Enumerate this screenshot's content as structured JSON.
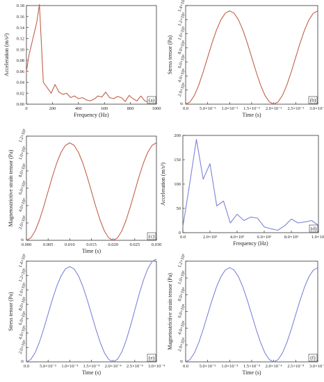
{
  "figure": {
    "colors": {
      "orange": "#c0604a",
      "blue": "#7b84d8",
      "axis": "#333333"
    }
  },
  "chart_data": [
    {
      "panel": "(a)",
      "type": "line",
      "color": "orange",
      "xlabel": "Frequency (Hz)",
      "ylabel": "Acceleration (m/s²)",
      "xlim": [
        0,
        1000
      ],
      "ylim": [
        0,
        0.18
      ],
      "xticks": [
        {
          "v": 0,
          "t": "0"
        },
        {
          "v": 200,
          "t": "200"
        },
        {
          "v": 400,
          "t": "400"
        },
        {
          "v": 600,
          "t": "600"
        },
        {
          "v": 800,
          "t": "800"
        },
        {
          "v": 1000,
          "t": "1000"
        }
      ],
      "yticks": [
        {
          "v": 0,
          "t": "0.00"
        },
        {
          "v": 0.02,
          "t": "0.02"
        },
        {
          "v": 0.04,
          "t": "0.04"
        },
        {
          "v": 0.06,
          "t": "0.06"
        },
        {
          "v": 0.08,
          "t": "0.08"
        },
        {
          "v": 0.1,
          "t": "0.10"
        },
        {
          "v": 0.12,
          "t": "0.12"
        },
        {
          "v": 0.14,
          "t": "0.14"
        },
        {
          "v": 0.16,
          "t": "0.16"
        },
        {
          "v": 0.18,
          "t": "0.18"
        }
      ],
      "x": [
        0,
        20,
        50,
        80,
        100,
        130,
        160,
        190,
        220,
        250,
        280,
        310,
        340,
        370,
        400,
        430,
        460,
        490,
        520,
        550,
        580,
        610,
        640,
        670,
        700,
        730,
        760,
        790,
        820,
        850,
        880,
        910,
        940,
        970,
        1000
      ],
      "y": [
        0.06,
        0.09,
        0.12,
        0.15,
        0.182,
        0.04,
        0.03,
        0.02,
        0.036,
        0.022,
        0.018,
        0.02,
        0.012,
        0.015,
        0.01,
        0.012,
        0.008,
        0.006,
        0.009,
        0.015,
        0.013,
        0.022,
        0.012,
        0.01,
        0.014,
        0.012,
        0.005,
        0.016,
        0.01,
        0.006,
        0.015,
        0.006,
        0.004,
        0.012,
        0.004
      ]
    },
    {
      "panel": "(b)",
      "type": "line",
      "color": "orange",
      "xlabel": "Time (s)",
      "ylabel": "Stress tensor (Pa)",
      "xlim": [
        0,
        0.03
      ],
      "ylim": [
        0,
        140000
      ],
      "xticks": [
        {
          "v": 0,
          "t": "0.0"
        },
        {
          "v": 0.005,
          "t": "5.0×10⁻³"
        },
        {
          "v": 0.01,
          "t": "1.0×10⁻²"
        },
        {
          "v": 0.015,
          "t": "1.5×10⁻²"
        },
        {
          "v": 0.02,
          "t": "2.0×10⁻²"
        },
        {
          "v": 0.025,
          "t": "2.5×10⁻²"
        },
        {
          "v": 0.03,
          "t": "3.0×10⁻²"
        }
      ],
      "yticks": [
        {
          "v": 0,
          "t": "0"
        },
        {
          "v": 20000,
          "t": "2.0×10⁴"
        },
        {
          "v": 40000,
          "t": "4.0×10⁴"
        },
        {
          "v": 60000,
          "t": "6.0×10⁴"
        },
        {
          "v": 80000,
          "t": "8.0×10⁴"
        },
        {
          "v": 100000,
          "t": "1.0×10⁵"
        },
        {
          "v": 120000,
          "t": "1.2×10⁵"
        },
        {
          "v": 140000,
          "t": "1.4×10⁵"
        }
      ],
      "ytick_rotated": true,
      "x": [
        0,
        0.001,
        0.002,
        0.003,
        0.004,
        0.005,
        0.006,
        0.007,
        0.008,
        0.009,
        0.01,
        0.011,
        0.012,
        0.013,
        0.014,
        0.015,
        0.016,
        0.017,
        0.018,
        0.019,
        0.02,
        0.021,
        0.022,
        0.023,
        0.024,
        0.025,
        0.026,
        0.027,
        0.028,
        0.029,
        0.03
      ],
      "y": [
        0,
        3200,
        12600,
        27400,
        46100,
        66600,
        86900,
        105200,
        119700,
        129200,
        132500,
        129200,
        119700,
        105200,
        86900,
        66600,
        46100,
        27400,
        12600,
        3200,
        0,
        3200,
        12600,
        27400,
        46100,
        66600,
        86900,
        105200,
        119700,
        129200,
        132500
      ]
    },
    {
      "panel": "(c)",
      "type": "line",
      "color": "orange",
      "xlabel": "Time (s)",
      "ylabel": "Magnetostrictive strain tensor (Pa)",
      "xlim": [
        0,
        0.03
      ],
      "ylim": [
        0,
        120000
      ],
      "xticks": [
        {
          "v": 0,
          "t": "0.000"
        },
        {
          "v": 0.005,
          "t": "0.005"
        },
        {
          "v": 0.01,
          "t": "0.010"
        },
        {
          "v": 0.015,
          "t": "0.015"
        },
        {
          "v": 0.02,
          "t": "0.020"
        },
        {
          "v": 0.025,
          "t": "0.025"
        },
        {
          "v": 0.03,
          "t": "0.030"
        }
      ],
      "yticks": [
        {
          "v": 0,
          "t": "0"
        },
        {
          "v": 20000,
          "t": "2.0×10⁴"
        },
        {
          "v": 40000,
          "t": "4.0×10⁴"
        },
        {
          "v": 60000,
          "t": "6.0×10⁴"
        },
        {
          "v": 80000,
          "t": "8.0×10⁴"
        },
        {
          "v": 100000,
          "t": "1.0×10⁵"
        },
        {
          "v": 120000,
          "t": "1.2×10⁵"
        }
      ],
      "ytick_rotated": true,
      "x": [
        0,
        0.001,
        0.002,
        0.003,
        0.004,
        0.005,
        0.006,
        0.007,
        0.008,
        0.009,
        0.01,
        0.011,
        0.012,
        0.013,
        0.014,
        0.015,
        0.016,
        0.017,
        0.018,
        0.019,
        0.02,
        0.021,
        0.022,
        0.023,
        0.024,
        0.025,
        0.026,
        0.027,
        0.028,
        0.029,
        0.03
      ],
      "y": [
        0,
        2700,
        10700,
        23200,
        39000,
        56400,
        73600,
        89100,
        101400,
        109400,
        112300,
        109400,
        101400,
        89100,
        73600,
        56400,
        39000,
        23200,
        10700,
        2700,
        0,
        2700,
        10700,
        23200,
        39000,
        56400,
        73600,
        89100,
        101400,
        109400,
        112300
      ]
    },
    {
      "panel": "(d)",
      "type": "line",
      "color": "blue",
      "xlabel": "Frequency (Hz)",
      "ylabel": "Acceleration (m/s²)",
      "xlim": [
        0,
        10000
      ],
      "ylim": [
        0,
        200
      ],
      "xticks": [
        {
          "v": 0,
          "t": "0.0"
        },
        {
          "v": 2000,
          "t": "2.0×10³"
        },
        {
          "v": 4000,
          "t": "4.0×10³"
        },
        {
          "v": 6000,
          "t": "6.0×10³"
        },
        {
          "v": 8000,
          "t": "8.0×10³"
        },
        {
          "v": 10000,
          "t": "1.0×10⁴"
        }
      ],
      "yticks": [
        {
          "v": 0,
          "t": "0"
        },
        {
          "v": 50,
          "t": "50"
        },
        {
          "v": 100,
          "t": "100"
        },
        {
          "v": 150,
          "t": "150"
        },
        {
          "v": 200,
          "t": "200"
        }
      ],
      "x": [
        0,
        500,
        1000,
        1500,
        2000,
        2500,
        3000,
        3500,
        4000,
        4500,
        5000,
        5500,
        6000,
        6500,
        7000,
        7500,
        8000,
        8500,
        9000,
        9500,
        10000
      ],
      "y": [
        12,
        100,
        192,
        110,
        142,
        55,
        65,
        20,
        38,
        25,
        32,
        30,
        12,
        8,
        5,
        14,
        28,
        20,
        22,
        25,
        15
      ]
    },
    {
      "panel": "(e)",
      "type": "line",
      "color": "blue",
      "xlabel": "Time (s)",
      "ylabel": "Stress tensor (Pa)",
      "xlim": [
        0,
        0.0003
      ],
      "ylim": [
        0,
        140000
      ],
      "xticks": [
        {
          "v": 0,
          "t": "0.0"
        },
        {
          "v": 5e-05,
          "t": "5.0×10⁻⁵"
        },
        {
          "v": 0.0001,
          "t": "1.0×10⁻⁴"
        },
        {
          "v": 0.00015,
          "t": "1.5×10⁻⁴"
        },
        {
          "v": 0.0002,
          "t": "2.0×10⁻⁴"
        },
        {
          "v": 0.00025,
          "t": "2.5×10⁻⁴"
        },
        {
          "v": 0.0003,
          "t": "3.0×10⁻⁴"
        }
      ],
      "yticks": [
        {
          "v": 0,
          "t": "0"
        },
        {
          "v": 20000,
          "t": "2.0×10⁴"
        },
        {
          "v": 40000,
          "t": "4.0×10⁴"
        },
        {
          "v": 60000,
          "t": "6.0×10⁴"
        },
        {
          "v": 80000,
          "t": "8.0×10⁴"
        },
        {
          "v": 100000,
          "t": "1.0×10⁵"
        },
        {
          "v": 120000,
          "t": "1.2×10⁵"
        },
        {
          "v": 140000,
          "t": "1.4×10⁵"
        }
      ],
      "ytick_rotated": true,
      "x": [
        0,
        1e-05,
        2e-05,
        3e-05,
        4e-05,
        5e-05,
        6e-05,
        7e-05,
        8e-05,
        9e-05,
        0.0001,
        0.00011,
        0.00012,
        0.00013,
        0.00014,
        0.00015,
        0.00016,
        0.00017,
        0.00018,
        0.00019,
        0.0002,
        0.00021,
        0.00022,
        0.00023,
        0.00024,
        0.00025,
        0.00026,
        0.00027,
        0.00028,
        0.00029,
        0.0003
      ],
      "y": [
        0,
        3200,
        12600,
        27400,
        46100,
        66600,
        86900,
        105200,
        119700,
        129200,
        132500,
        129200,
        119700,
        105200,
        86900,
        66600,
        46100,
        27400,
        12600,
        3200,
        0,
        3500,
        13600,
        29600,
        49800,
        71900,
        93900,
        113600,
        129300,
        139500,
        143000
      ]
    },
    {
      "panel": "(f)",
      "type": "line",
      "color": "blue",
      "xlabel": "Time (s)",
      "ylabel": "Magnetostrictive strain tensor (Pa)",
      "xlim": [
        0,
        0.0003
      ],
      "ylim": [
        0,
        120000
      ],
      "xticks": [
        {
          "v": 0,
          "t": "0.0"
        },
        {
          "v": 5e-05,
          "t": "5.0×10⁻⁵"
        },
        {
          "v": 0.0001,
          "t": "1.0×10⁻⁴"
        },
        {
          "v": 0.00015,
          "t": "1.5×10⁻⁴"
        },
        {
          "v": 0.0002,
          "t": "2.0×10⁻⁴"
        },
        {
          "v": 0.00025,
          "t": "2.5×10⁻⁴"
        },
        {
          "v": 0.0003,
          "t": "3.0×10⁻⁴"
        }
      ],
      "yticks": [
        {
          "v": 0,
          "t": "0"
        },
        {
          "v": 20000,
          "t": "2.0×10⁴"
        },
        {
          "v": 40000,
          "t": "4.0×10⁴"
        },
        {
          "v": 60000,
          "t": "6.0×10⁴"
        },
        {
          "v": 80000,
          "t": "8.0×10⁴"
        },
        {
          "v": 100000,
          "t": "1.0×10⁵"
        },
        {
          "v": 120000,
          "t": "1.2×10⁵"
        }
      ],
      "ytick_rotated": true,
      "x": [
        0,
        1e-05,
        2e-05,
        3e-05,
        4e-05,
        5e-05,
        6e-05,
        7e-05,
        8e-05,
        9e-05,
        0.0001,
        0.00011,
        0.00012,
        0.00013,
        0.00014,
        0.00015,
        0.00016,
        0.00017,
        0.00018,
        0.00019,
        0.0002,
        0.00021,
        0.00022,
        0.00023,
        0.00024,
        0.00025,
        0.00026,
        0.00027,
        0.00028,
        0.00029,
        0.0003
      ],
      "y": [
        0,
        2700,
        10700,
        23200,
        39000,
        56400,
        73600,
        89100,
        101400,
        109400,
        112300,
        109400,
        101400,
        89100,
        73600,
        56400,
        39000,
        23200,
        10700,
        2700,
        0,
        2700,
        10700,
        23200,
        39000,
        56400,
        73600,
        89100,
        101400,
        109400,
        112300
      ]
    }
  ]
}
